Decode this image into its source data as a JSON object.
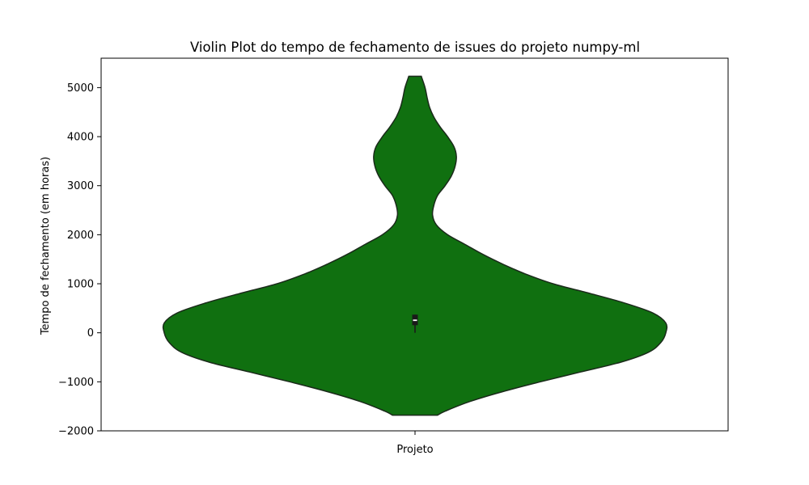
{
  "chart_data": {
    "type": "violin",
    "title": "Violin Plot do tempo de fechamento de issues do projeto numpy-ml",
    "xlabel": "",
    "ylabel": "Tempo de fechamento (em horas)",
    "categories": [
      "Projeto"
    ],
    "ylim": [
      -2000,
      5600
    ],
    "yticks": [
      -2000,
      -1000,
      0,
      1000,
      2000,
      3000,
      4000,
      5000
    ],
    "ytick_labels": [
      "−2000",
      "−1000",
      "0",
      "1000",
      "2000",
      "3000",
      "4000",
      "5000"
    ],
    "fill_color": "#107010",
    "edge_color": "#1a2a1a",
    "grid": false,
    "density": {
      "y": [
        -1680,
        -1600,
        -1400,
        -1200,
        -1000,
        -800,
        -600,
        -400,
        -200,
        0,
        200,
        400,
        600,
        800,
        1000,
        1200,
        1400,
        1600,
        1800,
        2000,
        2200,
        2400,
        2600,
        2800,
        3000,
        3200,
        3400,
        3600,
        3800,
        4000,
        4200,
        4400,
        4600,
        4800,
        5000,
        5230
      ],
      "half_width": [
        0.09,
        0.12,
        0.22,
        0.35,
        0.5,
        0.66,
        0.82,
        0.93,
        0.98,
        1.0,
        1.0,
        0.95,
        0.84,
        0.7,
        0.55,
        0.44,
        0.35,
        0.27,
        0.2,
        0.13,
        0.085,
        0.07,
        0.075,
        0.09,
        0.12,
        0.145,
        0.16,
        0.165,
        0.155,
        0.13,
        0.1,
        0.075,
        0.058,
        0.048,
        0.04,
        0.025
      ]
    },
    "box": {
      "q1": 155,
      "median": 255,
      "q3": 370,
      "whisker_low": 0,
      "whisker_high": 370
    },
    "median_color": "#ffffff",
    "box_color": "#1a1a1a"
  }
}
